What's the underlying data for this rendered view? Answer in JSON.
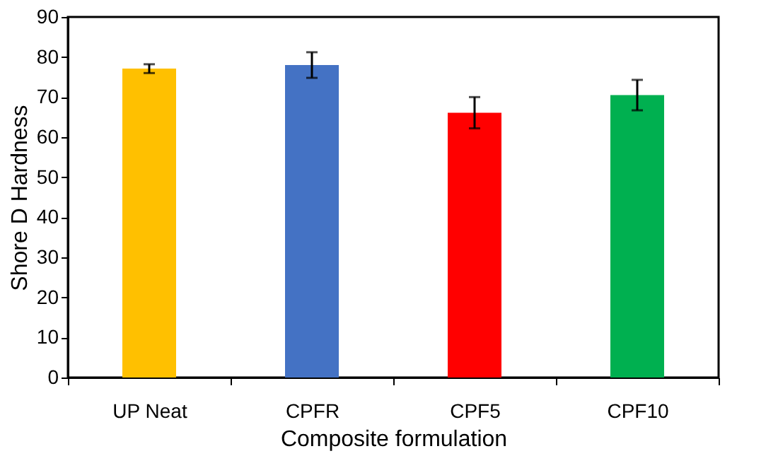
{
  "chart_data": {
    "type": "bar",
    "xlabel": "Composite formulation",
    "ylabel": "Shore D Hardness",
    "categories": [
      "UP Neat",
      "CPFR",
      "CPF5",
      "CPF10"
    ],
    "values": [
      77.1,
      78.0,
      66.1,
      70.5
    ],
    "colors": [
      "#ffc000",
      "#4472c4",
      "#ff0000",
      "#00b050"
    ],
    "errors": [
      1.1,
      3.2,
      3.9,
      3.8
    ],
    "ylim": [
      0,
      90
    ],
    "yticks": [
      0,
      10,
      20,
      30,
      40,
      50,
      60,
      70,
      80,
      90
    ],
    "grid": false
  }
}
